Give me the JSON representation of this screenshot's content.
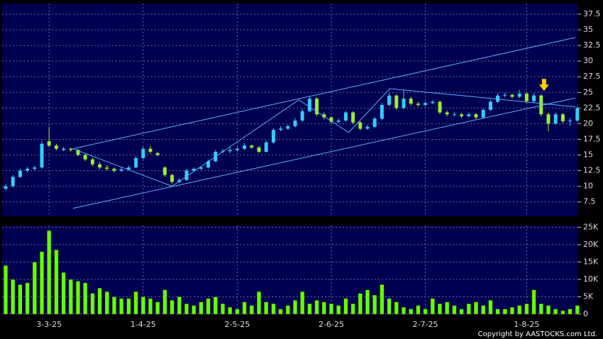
{
  "chart_data": [
    {
      "type": "candlestick",
      "up_color": "#33ccff",
      "down_color": "#99ee33",
      "categories": [
        null,
        null,
        null,
        null,
        null,
        null,
        "3-3-25",
        null,
        null,
        null,
        null,
        null,
        null,
        null,
        null,
        null,
        null,
        null,
        null,
        "1-4-25",
        null,
        null,
        null,
        null,
        null,
        null,
        null,
        null,
        null,
        null,
        null,
        null,
        "2-5-25",
        null,
        null,
        null,
        null,
        null,
        null,
        null,
        null,
        null,
        null,
        null,
        null,
        "2-6-25",
        null,
        null,
        null,
        null,
        null,
        null,
        null,
        null,
        null,
        null,
        null,
        null,
        "2-7-25",
        null,
        null,
        null,
        null,
        null,
        null,
        null,
        null,
        null,
        null,
        null,
        null,
        null,
        "1-8-25",
        null,
        null,
        null,
        null,
        null,
        null,
        null
      ],
      "series": [
        {
          "values": [
            [
              9.6,
              10.4,
              9.3,
              10
            ],
            [
              10,
              11.8,
              9.8,
              11.5
            ],
            [
              11.5,
              12.8,
              11.3,
              12.5
            ],
            [
              12.5,
              13.1,
              12.2,
              12.8
            ],
            [
              12.8,
              13.3,
              12.5,
              13
            ],
            [
              13,
              17.2,
              12.8,
              16.8
            ],
            [
              17.2,
              19.5,
              16.2,
              16.5
            ],
            [
              16.5,
              16.8,
              15.7,
              16
            ],
            [
              15.8,
              16.3,
              15.6,
              16
            ],
            [
              16,
              16.2,
              15.5,
              15.8
            ],
            [
              15.8,
              16,
              14.8,
              15
            ],
            [
              15,
              15.3,
              14,
              14.3
            ],
            [
              14.3,
              14.6,
              13.2,
              13.5
            ],
            [
              13.5,
              13.8,
              12.7,
              13
            ],
            [
              13,
              13.4,
              12.5,
              12.8
            ],
            [
              12.8,
              13,
              12.2,
              12.5
            ],
            [
              12.5,
              13,
              12.3,
              12.7
            ],
            [
              12.7,
              13.3,
              12.5,
              13
            ],
            [
              13,
              14.8,
              12.9,
              14.5
            ],
            [
              14.5,
              16.3,
              14.3,
              16
            ],
            [
              16,
              16.4,
              15.2,
              15.5
            ],
            [
              15.3,
              15.5,
              14.8,
              15
            ],
            [
              13,
              13.2,
              11.5,
              11.8
            ],
            [
              11.8,
              12,
              10.4,
              10.7
            ],
            [
              10.7,
              11.3,
              10.5,
              11
            ],
            [
              11,
              12.8,
              10.9,
              12.5
            ],
            [
              12.5,
              13,
              12.3,
              12.8
            ],
            [
              12.8,
              13.2,
              12.6,
              13
            ],
            [
              13,
              14.3,
              12.8,
              14
            ],
            [
              14,
              15.8,
              13.8,
              15.5
            ],
            [
              15.5,
              16,
              15.3,
              15.6
            ],
            [
              15.6,
              16.2,
              15.3,
              15.8
            ],
            [
              15.8,
              16.3,
              15.5,
              16
            ],
            [
              16,
              16.9,
              15.8,
              16.5
            ],
            [
              16.5,
              16.7,
              16,
              16.2
            ],
            [
              16.2,
              16.4,
              15.3,
              15.5
            ],
            [
              15.5,
              17.3,
              15.4,
              17
            ],
            [
              17,
              19.3,
              16.8,
              19
            ],
            [
              19,
              19.6,
              18.8,
              19.2
            ],
            [
              19.2,
              19.9,
              19,
              19.6
            ],
            [
              19.6,
              20.9,
              19.4,
              20.5
            ],
            [
              20.5,
              22.4,
              20.3,
              22
            ],
            [
              22,
              24.3,
              21.8,
              24
            ],
            [
              24,
              24.2,
              21.2,
              21.5
            ],
            [
              21.5,
              21.8,
              20.7,
              21
            ],
            [
              21,
              21.2,
              20,
              20.3
            ],
            [
              20.3,
              20.8,
              20.1,
              20.5
            ],
            [
              20.5,
              22.1,
              20.3,
              21.8
            ],
            [
              21.8,
              22,
              19.9,
              20.2
            ],
            [
              20.2,
              20.4,
              18.9,
              19.2
            ],
            [
              19.2,
              19.8,
              19,
              19.5
            ],
            [
              19.5,
              21.1,
              19.3,
              20.8
            ],
            [
              20.8,
              23.3,
              20.6,
              23
            ],
            [
              23,
              24.9,
              22.8,
              24.5
            ],
            [
              24.5,
              24.7,
              22.2,
              22.5
            ],
            [
              22.5,
              25.3,
              22.3,
              24
            ],
            [
              24,
              24.3,
              22.9,
              23.2
            ],
            [
              23.2,
              23.5,
              22.7,
              23
            ],
            [
              23,
              23.6,
              22.8,
              23.3
            ],
            [
              23.3,
              23.8,
              23.1,
              23.5
            ],
            [
              23.5,
              23.7,
              21.5,
              21.8
            ],
            [
              21.8,
              22.1,
              21.2,
              21.5
            ],
            [
              21.4,
              21.9,
              21.2,
              21.5
            ],
            [
              21.5,
              21.7,
              20.9,
              21.2
            ],
            [
              21.2,
              21.8,
              21,
              21.5
            ],
            [
              21.5,
              21.7,
              20.7,
              21
            ],
            [
              21,
              22.5,
              20.8,
              22.2
            ],
            [
              22.2,
              23.8,
              22,
              23.5
            ],
            [
              23.5,
              24.9,
              23.3,
              24.5
            ],
            [
              24.5,
              25,
              24.2,
              24.6
            ],
            [
              24.6,
              24.8,
              24,
              24.3
            ],
            [
              24.3,
              25.4,
              24.1,
              24.8
            ],
            [
              24.8,
              25,
              23.3,
              23.6
            ],
            [
              23.6,
              24.9,
              23.4,
              24.5
            ],
            [
              24.5,
              24.7,
              21.2,
              21.5
            ],
            [
              21.5,
              21.8,
              18.8,
              20
            ],
            [
              20,
              21.8,
              19.8,
              21.5
            ],
            [
              21.5,
              21.7,
              20.1,
              20.4
            ],
            [
              20.4,
              20.9,
              19.6,
              20.5
            ],
            [
              20.5,
              22.8,
              20.3,
              22.5
            ]
          ]
        }
      ],
      "ylim": [
        5.2,
        39.2
      ],
      "yticks": [
        7.5,
        10,
        12.5,
        15,
        17.5,
        20,
        22.5,
        25,
        27.5,
        30,
        32.5,
        35,
        37.5
      ],
      "grid": true,
      "trendlines": {
        "color": "#5fb0ff",
        "lines": [
          {
            "x": [
              9.3,
              78.7
            ],
            "y": [
              16,
              33.76
            ]
          },
          {
            "x": [
              9.3,
              78.7
            ],
            "y": [
              6.47,
              24.1
            ]
          },
          {
            "x": [
              9.3,
              23,
              40.5,
              47.4,
              53.1,
              65.2,
              78.7
            ],
            "y": [
              16,
              10,
              23.8,
              18.6,
              25.6,
              24.25,
              22.7
            ]
          }
        ]
      },
      "arrow": {
        "x": 74.4,
        "y": 25.8,
        "color": "#ffcc00"
      }
    },
    {
      "type": "bar",
      "color": "#66ff00",
      "values": [
        14000,
        10000,
        8500,
        9000,
        15000,
        18000,
        24000,
        18500,
        12000,
        10000,
        9500,
        9000,
        6000,
        7500,
        6500,
        5000,
        4500,
        4500,
        6500,
        5000,
        4500,
        3500,
        7000,
        4000,
        5000,
        3000,
        2500,
        3500,
        4500,
        5000,
        3000,
        2000,
        1500,
        3500,
        2500,
        6500,
        3500,
        3000,
        1500,
        2500,
        4000,
        6500,
        3000,
        4000,
        3500,
        3000,
        2500,
        4500,
        3000,
        6000,
        7000,
        5500,
        8500,
        4500,
        3500,
        2000,
        1500,
        2500,
        1500,
        4500,
        3000,
        3500,
        2500,
        1500,
        3000,
        3500,
        2500,
        4000,
        1500,
        1500,
        2000,
        2500,
        3000,
        7000,
        3000,
        2500,
        1500,
        1000,
        1500,
        2500
      ],
      "ylim": [
        0,
        25500
      ],
      "yticks": [
        0,
        {
          "value": 5000,
          "label": "5K"
        },
        {
          "value": 10000,
          "label": "10K"
        },
        {
          "value": 15000,
          "label": "15K"
        },
        {
          "value": 20000,
          "label": "20K"
        },
        {
          "value": 25000,
          "label": "25K"
        }
      ],
      "grid": true
    }
  ],
  "copyright": "Copyright by AASTOCKS.com Ltd."
}
